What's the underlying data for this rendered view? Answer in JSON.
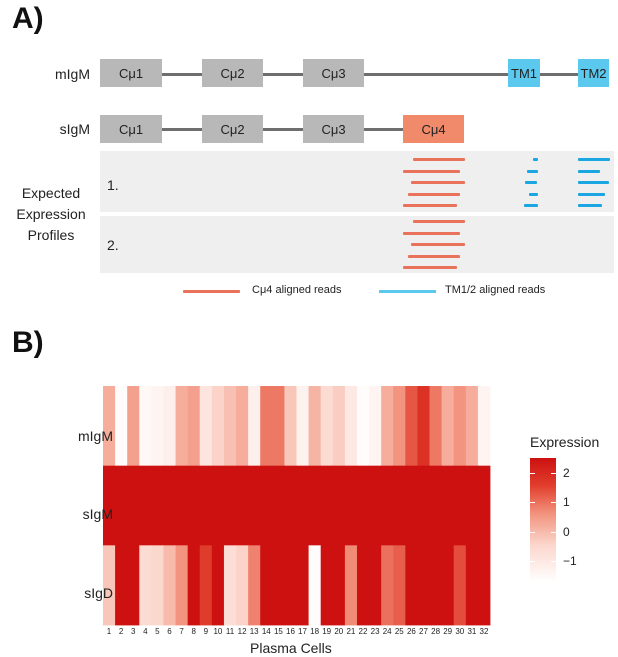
{
  "panel_a": {
    "label": "A)",
    "rows": [
      {
        "name": "mIgM",
        "exons": [
          "Cμ1",
          "Cμ2",
          "Cμ3",
          "TM1",
          "TM2"
        ]
      },
      {
        "name": "sIgM",
        "exons": [
          "Cμ1",
          "Cμ2",
          "Cμ3",
          "Cμ4"
        ]
      }
    ],
    "expected_label_line1": "Expected",
    "expected_label_line2": "Expression",
    "expected_label_line3": "Profiles",
    "profile_1": "1.",
    "profile_2": "2.",
    "legend_c4": "Cμ4 aligned reads",
    "legend_tm": "TM1/2 aligned reads",
    "colors": {
      "exon_gray": "#b8b8b8",
      "tm_blue": "#5bc8ee",
      "c4_orange": "#f08a6a",
      "read_red": "#e8735a",
      "read_blue": "#1aa6e0"
    }
  },
  "panel_b": {
    "label": "B)"
  },
  "chart_data": {
    "type": "heatmap",
    "title": "",
    "xlabel": "Plasma Cells",
    "ylabel": "",
    "rows": [
      "mIgM",
      "sIgM",
      "sIgD"
    ],
    "columns": [
      "1",
      "2",
      "3",
      "4",
      "5",
      "6",
      "7",
      "8",
      "9",
      "10",
      "11",
      "12",
      "13",
      "14",
      "15",
      "16",
      "17",
      "18",
      "19",
      "20",
      "21",
      "22",
      "23",
      "24",
      "25",
      "26",
      "27",
      "28",
      "29",
      "30",
      "31",
      "32"
    ],
    "values": [
      [
        0.2,
        -1.6,
        0.4,
        -1.5,
        -1.4,
        -1.2,
        0.2,
        0.4,
        -0.9,
        -0.4,
        -0.1,
        0.2,
        -1.2,
        0.9,
        0.9,
        -0.2,
        -1.3,
        0.1,
        -0.6,
        -0.3,
        -1.0,
        -1.6,
        -1.4,
        0.2,
        0.6,
        1.3,
        1.8,
        0.9,
        0.2,
        0.6,
        0.2,
        -1.4
      ],
      [
        2.5,
        2.5,
        2.5,
        2.5,
        2.5,
        2.5,
        2.5,
        2.5,
        2.5,
        2.5,
        2.5,
        2.5,
        2.5,
        2.5,
        2.5,
        2.5,
        2.5,
        2.5,
        2.5,
        2.5,
        2.5,
        2.5,
        2.5,
        2.5,
        2.5,
        2.5,
        2.5,
        2.5,
        2.5,
        2.5,
        2.5,
        2.5
      ],
      [
        -0.2,
        2.5,
        2.5,
        -0.6,
        -0.5,
        0.0,
        0.6,
        2.5,
        1.6,
        2.5,
        -0.7,
        -0.4,
        0.8,
        2.5,
        2.5,
        2.5,
        2.5,
        -1.6,
        2.5,
        2.5,
        0.7,
        2.5,
        2.5,
        1.0,
        1.2,
        2.5,
        2.5,
        2.5,
        2.5,
        1.4,
        2.5,
        2.5
      ]
    ],
    "colorbar": {
      "title": "Expression",
      "ticks": [
        "2",
        "1",
        "0",
        "−1"
      ],
      "tick_values": [
        2,
        1,
        0,
        -1
      ],
      "range": [
        -1.7,
        2.5
      ]
    }
  }
}
